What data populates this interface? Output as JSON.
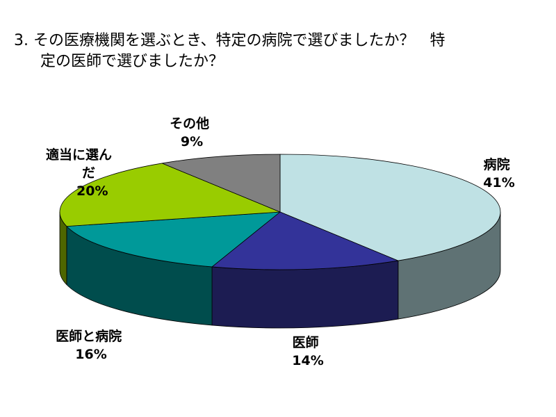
{
  "chart_data": {
    "type": "pie",
    "title_lines": [
      "3. その医療機関を選ぶとき、特定の病院で選びましたか？　特",
      "定の医師で選びましたか？"
    ],
    "slices": [
      {
        "key": "hospital",
        "label_lines": [
          "病院"
        ],
        "percent_text": "41%",
        "value": 41,
        "top_color": "#BFE1E4",
        "side_color": "#5F7274"
      },
      {
        "key": "doctor",
        "label_lines": [
          "医師"
        ],
        "percent_text": "14%",
        "value": 14,
        "top_color": "#333399",
        "side_color": "#1C1C52"
      },
      {
        "key": "both",
        "label_lines": [
          "医師と病院"
        ],
        "percent_text": "16%",
        "value": 16,
        "top_color": "#009999",
        "side_color": "#004D4D"
      },
      {
        "key": "random",
        "label_lines": [
          "適当に選ん",
          "だ"
        ],
        "percent_text": "20%",
        "value": 20,
        "top_color": "#99CC00",
        "side_color": "#4D6600"
      },
      {
        "key": "other",
        "label_lines": [
          "その他"
        ],
        "percent_text": "9%",
        "value": 9,
        "top_color": "#808080",
        "side_color": "#404040"
      }
    ]
  }
}
